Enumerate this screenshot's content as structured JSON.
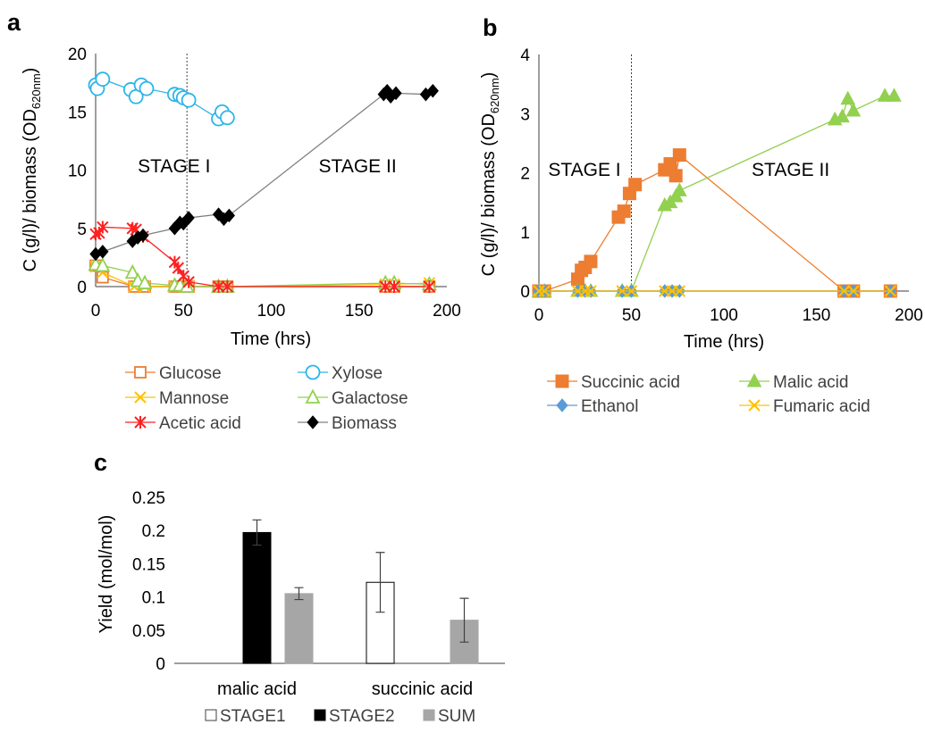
{
  "panels": [
    "a",
    "b",
    "c"
  ],
  "chart_data": [
    {
      "type": "scatter",
      "panel": "a",
      "xlabel": "Time (hrs)",
      "ylabel_main": "C (g/l)/ biomass (OD",
      "ylabel_sub": "620nm",
      "ylabel_end": ")",
      "xlim": [
        0,
        200
      ],
      "ylim": [
        0,
        20
      ],
      "xticks": [
        "0",
        "50",
        "100",
        "150",
        "200"
      ],
      "yticks": [
        "0",
        "5",
        "10",
        "15",
        "20"
      ],
      "divider_x": 52,
      "stage_labels": [
        {
          "text": "STAGE I",
          "x": 24,
          "y": 9.8
        },
        {
          "text": "STAGE II",
          "x": 127,
          "y": 9.8
        }
      ],
      "series": [
        {
          "name": "Glucose",
          "color": "#ED7D31",
          "marker": "square-open",
          "x": [
            0,
            4,
            22,
            28,
            45,
            50,
            53,
            70,
            75,
            165,
            170,
            190
          ],
          "y": [
            1.8,
            0.8,
            0,
            0,
            0,
            0,
            0,
            0,
            0,
            0,
            0,
            0
          ]
        },
        {
          "name": "Xylose",
          "color": "#2CB5E8",
          "marker": "circle-open",
          "x": [
            0,
            1,
            4,
            20,
            23,
            26,
            29,
            45,
            48,
            50,
            53,
            70,
            72,
            75
          ],
          "y": [
            17.3,
            17.0,
            17.8,
            16.9,
            16.3,
            17.3,
            17.0,
            16.5,
            16.4,
            16.2,
            16.0,
            14.4,
            15.0,
            14.5
          ]
        },
        {
          "name": "Mannose",
          "color": "#FFC000",
          "marker": "x",
          "x": [
            0,
            4,
            22,
            28,
            45,
            50,
            53,
            70,
            75,
            165,
            170,
            190
          ],
          "y": [
            1.7,
            1.2,
            0,
            0,
            0,
            0,
            0,
            0,
            0,
            0.2,
            0.2,
            0.3
          ]
        },
        {
          "name": "Galactose",
          "color": "#92D050",
          "marker": "triangle-open",
          "x": [
            0,
            4,
            21,
            24,
            28,
            45,
            48,
            52,
            70,
            75,
            165,
            170,
            190
          ],
          "y": [
            1.9,
            1.8,
            1.2,
            0.5,
            0.3,
            0.1,
            0.1,
            0,
            0,
            0,
            0.3,
            0.3,
            0.2
          ]
        },
        {
          "name": "Acetic acid",
          "color": "#FF2020",
          "marker": "asterisk",
          "x": [
            0,
            2,
            4,
            21,
            23,
            27,
            45,
            47,
            50,
            53,
            70,
            75,
            165,
            170,
            190
          ],
          "y": [
            4.5,
            4.6,
            5.1,
            5.0,
            4.9,
            4.3,
            2.1,
            1.6,
            0.9,
            0.4,
            0,
            0,
            0,
            0,
            0
          ]
        },
        {
          "name": "Biomass",
          "color": "#000000",
          "marker": "diamond",
          "line": "#808080",
          "x": [
            0,
            4,
            21,
            24,
            27,
            45,
            48,
            50,
            53,
            70,
            73,
            76,
            164,
            166,
            168,
            171,
            188,
            192
          ],
          "y": [
            2.8,
            3.0,
            3.9,
            4.2,
            4.4,
            5.0,
            5.5,
            5.4,
            5.9,
            6.2,
            5.8,
            6.1,
            16.5,
            16.8,
            16.3,
            16.6,
            16.5,
            16.8
          ]
        }
      ],
      "legend_order": [
        "Glucose",
        "Xylose",
        "Mannose",
        "Galactose",
        "Acetic acid",
        "Biomass"
      ]
    },
    {
      "type": "scatter",
      "panel": "b",
      "xlabel": "Time (hrs)",
      "ylabel_main": "C (g/l)/ biomass (OD",
      "ylabel_sub": "620nm",
      "ylabel_end": ")",
      "xlim": [
        0,
        200
      ],
      "ylim": [
        0,
        4
      ],
      "xticks": [
        "0",
        "50",
        "100",
        "150",
        "200"
      ],
      "yticks": [
        "0",
        "1",
        "2",
        "3",
        "4"
      ],
      "divider_x": 50,
      "stage_labels": [
        {
          "text": "STAGE I",
          "x": 5,
          "y": 1.95
        },
        {
          "text": "STAGE II",
          "x": 115,
          "y": 1.95
        }
      ],
      "series": [
        {
          "name": "Succinic acid",
          "color": "#ED7D31",
          "marker": "square",
          "x": [
            0,
            3,
            21,
            23,
            25,
            28,
            43,
            46,
            49,
            52,
            68,
            71,
            74,
            76,
            165,
            170,
            190
          ],
          "y": [
            0,
            0,
            0.2,
            0.35,
            0.4,
            0.5,
            1.25,
            1.35,
            1.65,
            1.8,
            2.05,
            2.15,
            1.95,
            2.3,
            0,
            0,
            0
          ]
        },
        {
          "name": "Malic acid",
          "color": "#92D050",
          "marker": "triangle",
          "x": [
            0,
            3,
            21,
            25,
            28,
            45,
            50,
            68,
            71,
            74,
            76,
            160,
            164,
            167,
            170,
            187,
            192
          ],
          "y": [
            0,
            0,
            0,
            0,
            0,
            0,
            0,
            1.45,
            1.5,
            1.6,
            1.7,
            2.9,
            2.95,
            3.25,
            3.05,
            3.3,
            3.3
          ]
        },
        {
          "name": "Ethanol",
          "color": "#5B9BD5",
          "marker": "diamond",
          "x": [
            0,
            3,
            21,
            25,
            28,
            45,
            50,
            68,
            72,
            76,
            165,
            170,
            190
          ],
          "y": [
            0,
            0,
            0,
            0,
            0,
            0,
            0,
            0,
            0,
            0,
            0,
            0,
            0
          ]
        },
        {
          "name": "Fumaric acid",
          "color": "#FFC000",
          "marker": "x",
          "x": [
            0,
            3,
            21,
            25,
            28,
            45,
            50,
            68,
            72,
            76,
            165,
            170,
            190
          ],
          "y": [
            0,
            0,
            0,
            0,
            0,
            0,
            0,
            0,
            0,
            0,
            0,
            0,
            0
          ]
        }
      ],
      "legend_order": [
        "Succinic acid",
        "Malic acid",
        "Ethanol",
        "Fumaric acid"
      ]
    },
    {
      "type": "bar",
      "panel": "c",
      "ylabel": "Yield (mol/mol)",
      "ylim": [
        0,
        0.25
      ],
      "yticks": [
        "0",
        "0.05",
        "0.1",
        "0.15",
        "0.2",
        "0.25"
      ],
      "categories": [
        "malic acid",
        "succinic acid"
      ],
      "series": [
        {
          "name": "STAGE1",
          "color": "#FFFFFF",
          "stroke": "#000000",
          "values": [
            0,
            0.122
          ],
          "errors": [
            0,
            0.045
          ]
        },
        {
          "name": "STAGE2",
          "color": "#000000",
          "stroke": "#000000",
          "values": [
            0.197,
            0
          ],
          "errors": [
            0.019,
            0
          ]
        },
        {
          "name": "SUM",
          "color": "#A6A6A6",
          "stroke": "#A6A6A6",
          "values": [
            0.105,
            0.065
          ],
          "errors": [
            0.009,
            0.033
          ]
        }
      ]
    }
  ]
}
